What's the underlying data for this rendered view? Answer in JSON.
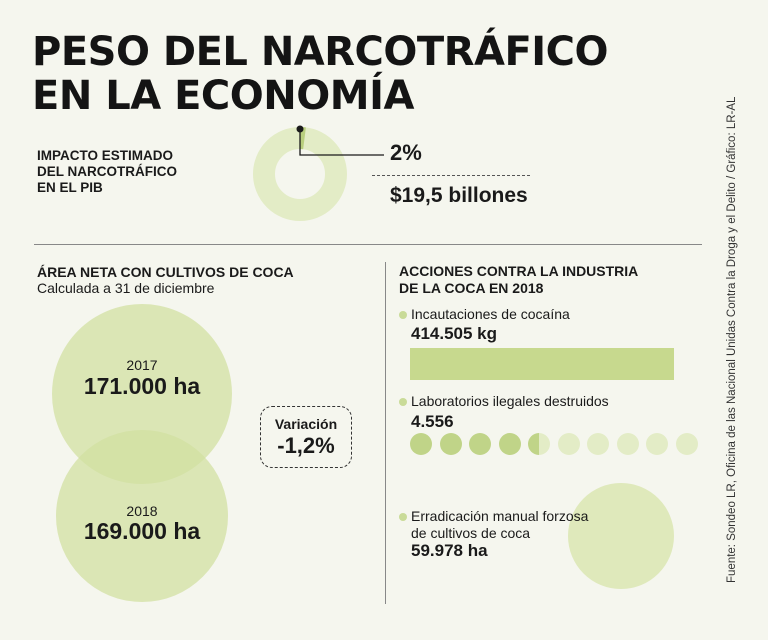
{
  "title": {
    "line1": "PESO DEL NARCOTRÁFICO",
    "line2": "EN LA ECONOMÍA"
  },
  "pib": {
    "label_lines": [
      "IMPACTO ESTIMADO",
      "DEL NARCOTRÁFICO",
      "EN EL PIB"
    ],
    "percent": "2%",
    "amount": "$19,5 billones",
    "share": 0.02
  },
  "area": {
    "title": "ÁREA NETA CON CULTIVOS DE COCA",
    "subtitle": "Calculada a 31 de diciembre",
    "items": [
      {
        "year": "2017",
        "value": "171.000 ha"
      },
      {
        "year": "2018",
        "value": "169.000 ha"
      }
    ],
    "variation_label": "Variación",
    "variation_value": "-1,2%"
  },
  "actions": {
    "title_lines": [
      "ACCIONES CONTRA LA INDUSTRIA",
      "DE LA COCA EN 2018"
    ],
    "seizures": {
      "label": "Incautaciones de cocaína",
      "value": "414.505 kg"
    },
    "labs": {
      "label": "Laboratorios ilegales destruidos",
      "value": "4.556",
      "filled_fraction": 0.455
    },
    "eradication": {
      "label_lines": [
        "Erradicación manual forzosa",
        "de cultivos de coca"
      ],
      "value": "59.978 ha"
    }
  },
  "source": "Fuente: Sondeo LR, Oficina de las Nacional Unidas Contra la Droga y el Delito / Gráfico: LR-AL",
  "colors": {
    "accent_green": "#c7d98e",
    "light_green": "#e3ecc6",
    "background": "#f5f6ee"
  }
}
